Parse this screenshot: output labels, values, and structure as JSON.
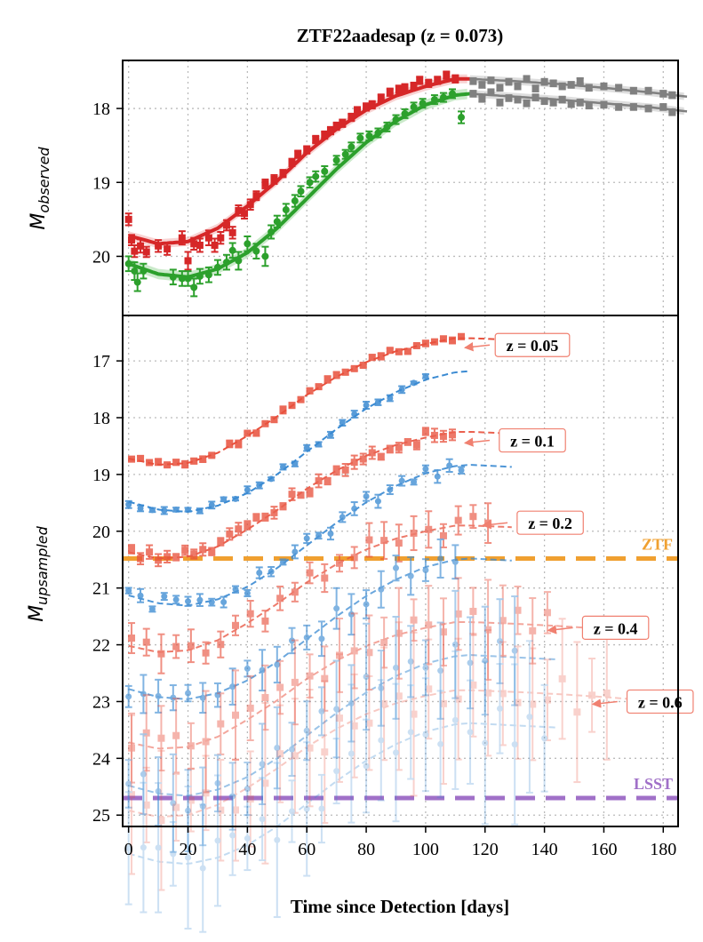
{
  "chart_data": [
    {
      "type": "scatter",
      "panel": "top",
      "title": "ZTF22aadesap (z = 0.073)",
      "xlabel": "",
      "ylabel": "M",
      "ylabel_sub": "observed",
      "xlim": [
        -2,
        185
      ],
      "ylim": [
        20.8,
        17.35
      ],
      "yticks": [
        18,
        19,
        20
      ],
      "grid": true,
      "colors": {
        "r": "#d62728",
        "g": "#2ca02c",
        "pred": "#808080",
        "band": "#c8c8c8"
      },
      "fit_r": {
        "x": [
          0,
          10,
          20,
          30,
          40,
          50,
          60,
          70,
          80,
          90,
          100,
          110,
          115
        ],
        "y": [
          19.72,
          19.83,
          19.8,
          19.62,
          19.32,
          18.98,
          18.6,
          18.28,
          18.02,
          17.83,
          17.7,
          17.6,
          17.6
        ]
      },
      "fit_g": {
        "x": [
          0,
          10,
          20,
          30,
          40,
          50,
          60,
          70,
          80,
          90,
          100,
          110,
          115
        ],
        "y": [
          20.1,
          20.24,
          20.28,
          20.17,
          19.95,
          19.62,
          19.22,
          18.82,
          18.46,
          18.17,
          17.95,
          17.82,
          17.8
        ]
      },
      "pred_r": {
        "x": [
          115,
          130,
          145,
          160,
          175,
          188
        ],
        "y": [
          17.6,
          17.63,
          17.67,
          17.72,
          17.78,
          17.84
        ]
      },
      "pred_g": {
        "x": [
          115,
          130,
          145,
          160,
          175,
          188
        ],
        "y": [
          17.8,
          17.84,
          17.88,
          17.93,
          17.98,
          18.04
        ]
      },
      "r_points": {
        "x": [
          0,
          1,
          2,
          4,
          6,
          10,
          13,
          18,
          20,
          22,
          24,
          27,
          29,
          31,
          33,
          35,
          37,
          39,
          41,
          43,
          46,
          49,
          52,
          55,
          57,
          60,
          63,
          66,
          68,
          70,
          72,
          75,
          77,
          80,
          82,
          85,
          88,
          91,
          93,
          96,
          98,
          101,
          104,
          107,
          110
        ],
        "y": [
          19.5,
          19.78,
          19.93,
          19.86,
          19.94,
          19.86,
          19.9,
          19.75,
          20.06,
          19.83,
          19.85,
          19.75,
          19.85,
          19.75,
          19.58,
          19.68,
          19.38,
          19.42,
          19.3,
          19.18,
          19.02,
          18.96,
          18.88,
          18.73,
          18.62,
          18.56,
          18.42,
          18.36,
          18.3,
          18.24,
          18.2,
          18.12,
          18.03,
          17.98,
          17.95,
          17.86,
          17.78,
          17.74,
          17.72,
          17.7,
          17.62,
          17.66,
          17.62,
          17.55,
          17.6
        ],
        "err": [
          0.08,
          0.07,
          0.08,
          0.09,
          0.07,
          0.08,
          0.08,
          0.09,
          0.12,
          0.08,
          0.09,
          0.1,
          0.09,
          0.08,
          0.07,
          0.08,
          0.07,
          0.07,
          0.07,
          0.06,
          0.06,
          0.06,
          0.05,
          0.05,
          0.05,
          0.05,
          0.05,
          0.05,
          0.05,
          0.05,
          0.05,
          0.05,
          0.05,
          0.05,
          0.05,
          0.05,
          0.05,
          0.05,
          0.05,
          0.05,
          0.05,
          0.05,
          0.05,
          0.05,
          0.05
        ]
      },
      "g_points": {
        "x": [
          0,
          2,
          3,
          5,
          15,
          18,
          20,
          22,
          24,
          27,
          30,
          33,
          35,
          37,
          40,
          43,
          46,
          48,
          50,
          53,
          56,
          58,
          61,
          63,
          66,
          70,
          73,
          75,
          78,
          81,
          84,
          87,
          90,
          93,
          96,
          99,
          103,
          106,
          109,
          112
        ],
        "y": [
          20.1,
          20.2,
          20.35,
          20.2,
          20.28,
          20.3,
          20.3,
          20.42,
          20.27,
          20.25,
          20.15,
          20.08,
          19.92,
          20.06,
          19.83,
          19.93,
          20.0,
          19.67,
          19.53,
          19.37,
          19.25,
          19.12,
          19.0,
          18.92,
          18.85,
          18.7,
          18.62,
          18.52,
          18.4,
          18.37,
          18.33,
          18.25,
          18.15,
          18.07,
          17.98,
          17.93,
          17.88,
          17.85,
          17.8,
          18.12
        ],
        "err": [
          0.1,
          0.12,
          0.12,
          0.1,
          0.1,
          0.1,
          0.1,
          0.12,
          0.1,
          0.1,
          0.1,
          0.1,
          0.1,
          0.12,
          0.1,
          0.1,
          0.13,
          0.09,
          0.08,
          0.08,
          0.08,
          0.07,
          0.07,
          0.07,
          0.07,
          0.06,
          0.06,
          0.06,
          0.06,
          0.06,
          0.06,
          0.06,
          0.06,
          0.06,
          0.06,
          0.06,
          0.06,
          0.06,
          0.06,
          0.08
        ]
      },
      "pred_points_r": {
        "x": [
          116,
          119,
          122,
          125,
          128,
          131,
          134,
          137,
          140,
          143,
          146,
          149,
          152,
          155,
          160,
          165,
          170,
          175,
          180,
          183
        ],
        "y": [
          17.63,
          17.68,
          17.62,
          17.72,
          17.64,
          17.7,
          17.6,
          17.73,
          17.64,
          17.66,
          17.7,
          17.68,
          17.63,
          17.72,
          17.7,
          17.72,
          17.76,
          17.76,
          17.8,
          17.82
        ]
      },
      "pred_points_g": {
        "x": [
          116,
          119,
          122,
          125,
          128,
          131,
          134,
          137,
          140,
          143,
          146,
          149,
          152,
          155,
          160,
          165,
          170,
          175,
          180,
          183
        ],
        "y": [
          17.8,
          17.87,
          17.78,
          17.92,
          17.86,
          17.88,
          17.93,
          17.85,
          17.9,
          17.92,
          17.88,
          17.94,
          17.92,
          17.96,
          17.95,
          17.98,
          17.98,
          18.0,
          17.98,
          18.05
        ]
      }
    },
    {
      "type": "scatter",
      "panel": "bottom",
      "xlabel": "Time since Detection [days]",
      "ylabel": "M",
      "ylabel_sub": "upsampled",
      "xlim": [
        -2,
        185
      ],
      "ylim": [
        25.2,
        16.2
      ],
      "yticks": [
        17,
        18,
        19,
        20,
        21,
        22,
        23,
        24,
        25
      ],
      "xticks": [
        0,
        20,
        40,
        60,
        80,
        100,
        120,
        140,
        160,
        180
      ],
      "grid": true,
      "colors": {
        "r": "#e8503c",
        "b": "#3a8ad2"
      },
      "hlines": [
        {
          "label": "ZTF",
          "y": 20.48,
          "color": "#f0a030"
        },
        {
          "label": "LSST",
          "y": 24.7,
          "color": "#a070c8"
        }
      ],
      "redshifts": [
        {
          "label": "z = 0.05",
          "z": 0.05,
          "offset": -1.0,
          "alpha": 1.0,
          "err_scale": 0.08,
          "arrow_x": 112,
          "arrow_y": 16.72,
          "r_last": 113,
          "b_last": 103
        },
        {
          "label": "z = 0.1",
          "z": 0.1,
          "offset": 0.65,
          "alpha": 0.9,
          "err_scale": 0.15,
          "arrow_x": 112,
          "arrow_y": 18.4,
          "r_last": 110,
          "b_last": 113
        },
        {
          "label": "z = 0.2",
          "z": 0.2,
          "offset": 2.3,
          "alpha": 0.75,
          "err_scale": 0.45,
          "arrow_x": 118,
          "arrow_y": 19.85,
          "r_last": 124,
          "b_last": 110
        },
        {
          "label": "z = 0.4",
          "z": 0.4,
          "offset": 4.0,
          "alpha": 0.5,
          "err_scale": 1.2,
          "arrow_x": 140,
          "arrow_y": 21.7,
          "r_last": 145,
          "b_last": 130
        },
        {
          "label": "z = 0.6",
          "z": 0.6,
          "offset": 5.2,
          "alpha": 0.3,
          "err_scale": 1.8,
          "arrow_x": 155,
          "arrow_y": 23.0,
          "r_last": 165,
          "b_last": 140
        }
      ]
    }
  ]
}
